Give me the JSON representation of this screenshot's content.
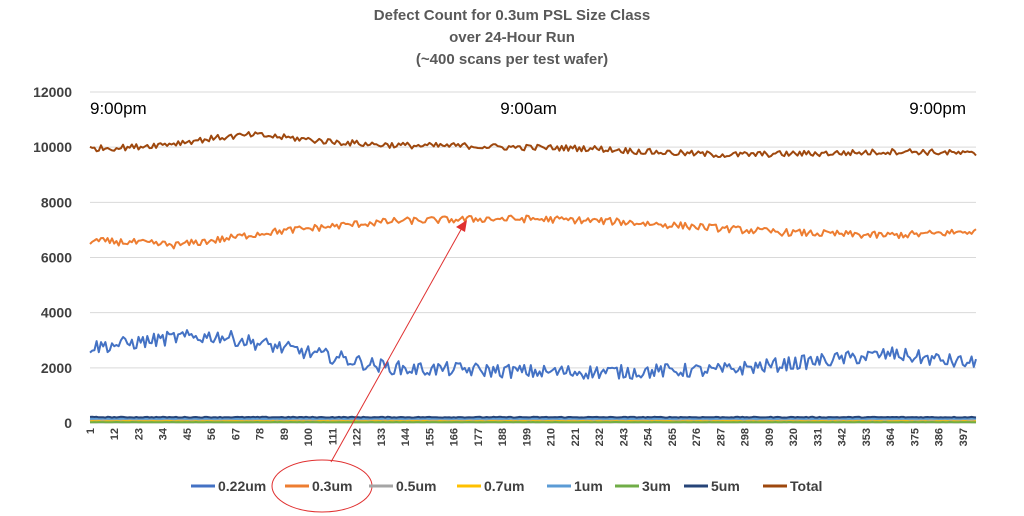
{
  "chart_data": {
    "type": "line",
    "title": [
      "Defect Count for 0.3um PSL Size Class",
      "over 24-Hour Run",
      "(~400 scans per test wafer)"
    ],
    "xlabel": "",
    "ylabel": "",
    "ylim": [
      0,
      12000
    ],
    "yticks": [
      "0",
      "2000",
      "4000",
      "6000",
      "8000",
      "10000",
      "12000"
    ],
    "xlim": [
      1,
      403
    ],
    "xticks": [
      "1",
      "12",
      "23",
      "34",
      "45",
      "56",
      "67",
      "78",
      "89",
      "100",
      "111",
      "122",
      "133",
      "144",
      "155",
      "166",
      "177",
      "188",
      "199",
      "210",
      "221",
      "232",
      "243",
      "254",
      "265",
      "276",
      "287",
      "298",
      "309",
      "320",
      "331",
      "342",
      "353",
      "364",
      "375",
      "386",
      "397"
    ],
    "time_labels": [
      {
        "text": "9:00pm",
        "x": 1
      },
      {
        "text": "9:00am",
        "x": 200
      },
      {
        "text": "9:00pm",
        "x": 400
      }
    ],
    "grid": true,
    "legend_position": "bottom",
    "series": [
      {
        "name": "0.22um",
        "color": "#4472C4",
        "noise": 260,
        "points": [
          [
            1,
            2750
          ],
          [
            20,
            2900
          ],
          [
            40,
            3100
          ],
          [
            60,
            3150
          ],
          [
            80,
            2850
          ],
          [
            100,
            2550
          ],
          [
            115,
            2350
          ],
          [
            130,
            2100
          ],
          [
            145,
            1950
          ],
          [
            165,
            1950
          ],
          [
            185,
            1900
          ],
          [
            205,
            1850
          ],
          [
            225,
            1850
          ],
          [
            245,
            1850
          ],
          [
            265,
            1900
          ],
          [
            285,
            1900
          ],
          [
            305,
            2050
          ],
          [
            325,
            2200
          ],
          [
            345,
            2350
          ],
          [
            365,
            2500
          ],
          [
            385,
            2300
          ],
          [
            403,
            2150
          ]
        ]
      },
      {
        "name": "0.3um",
        "color": "#ED7D31",
        "noise": 130,
        "points": [
          [
            1,
            6600
          ],
          [
            20,
            6550
          ],
          [
            40,
            6450
          ],
          [
            60,
            6650
          ],
          [
            80,
            6900
          ],
          [
            100,
            7050
          ],
          [
            120,
            7200
          ],
          [
            140,
            7320
          ],
          [
            160,
            7360
          ],
          [
            180,
            7400
          ],
          [
            200,
            7400
          ],
          [
            220,
            7360
          ],
          [
            240,
            7300
          ],
          [
            260,
            7200
          ],
          [
            280,
            7100
          ],
          [
            300,
            6980
          ],
          [
            320,
            6900
          ],
          [
            340,
            6850
          ],
          [
            360,
            6800
          ],
          [
            380,
            6850
          ],
          [
            403,
            6950
          ]
        ]
      },
      {
        "name": "0.5um",
        "color": "#A5A5A5",
        "noise": 10,
        "points": [
          [
            1,
            110
          ],
          [
            403,
            110
          ]
        ]
      },
      {
        "name": "0.7um",
        "color": "#FFC000",
        "noise": 10,
        "points": [
          [
            1,
            60
          ],
          [
            403,
            60
          ]
        ]
      },
      {
        "name": "1um",
        "color": "#5B9BD5",
        "noise": 10,
        "points": [
          [
            1,
            160
          ],
          [
            403,
            160
          ]
        ]
      },
      {
        "name": "3um",
        "color": "#70AD47",
        "noise": 6,
        "points": [
          [
            1,
            30
          ],
          [
            403,
            30
          ]
        ]
      },
      {
        "name": "5um",
        "color": "#264478",
        "noise": 15,
        "points": [
          [
            1,
            210
          ],
          [
            403,
            210
          ]
        ]
      },
      {
        "name": "Total",
        "color": "#9E480E",
        "noise": 110,
        "points": [
          [
            1,
            9950
          ],
          [
            20,
            10000
          ],
          [
            40,
            10150
          ],
          [
            60,
            10350
          ],
          [
            75,
            10450
          ],
          [
            90,
            10350
          ],
          [
            110,
            10200
          ],
          [
            130,
            10100
          ],
          [
            150,
            10050
          ],
          [
            170,
            10050
          ],
          [
            190,
            10000
          ],
          [
            210,
            9980
          ],
          [
            230,
            9950
          ],
          [
            250,
            9850
          ],
          [
            270,
            9780
          ],
          [
            290,
            9720
          ],
          [
            310,
            9750
          ],
          [
            330,
            9770
          ],
          [
            350,
            9800
          ],
          [
            370,
            9850
          ],
          [
            390,
            9800
          ],
          [
            403,
            9750
          ]
        ]
      }
    ]
  }
}
